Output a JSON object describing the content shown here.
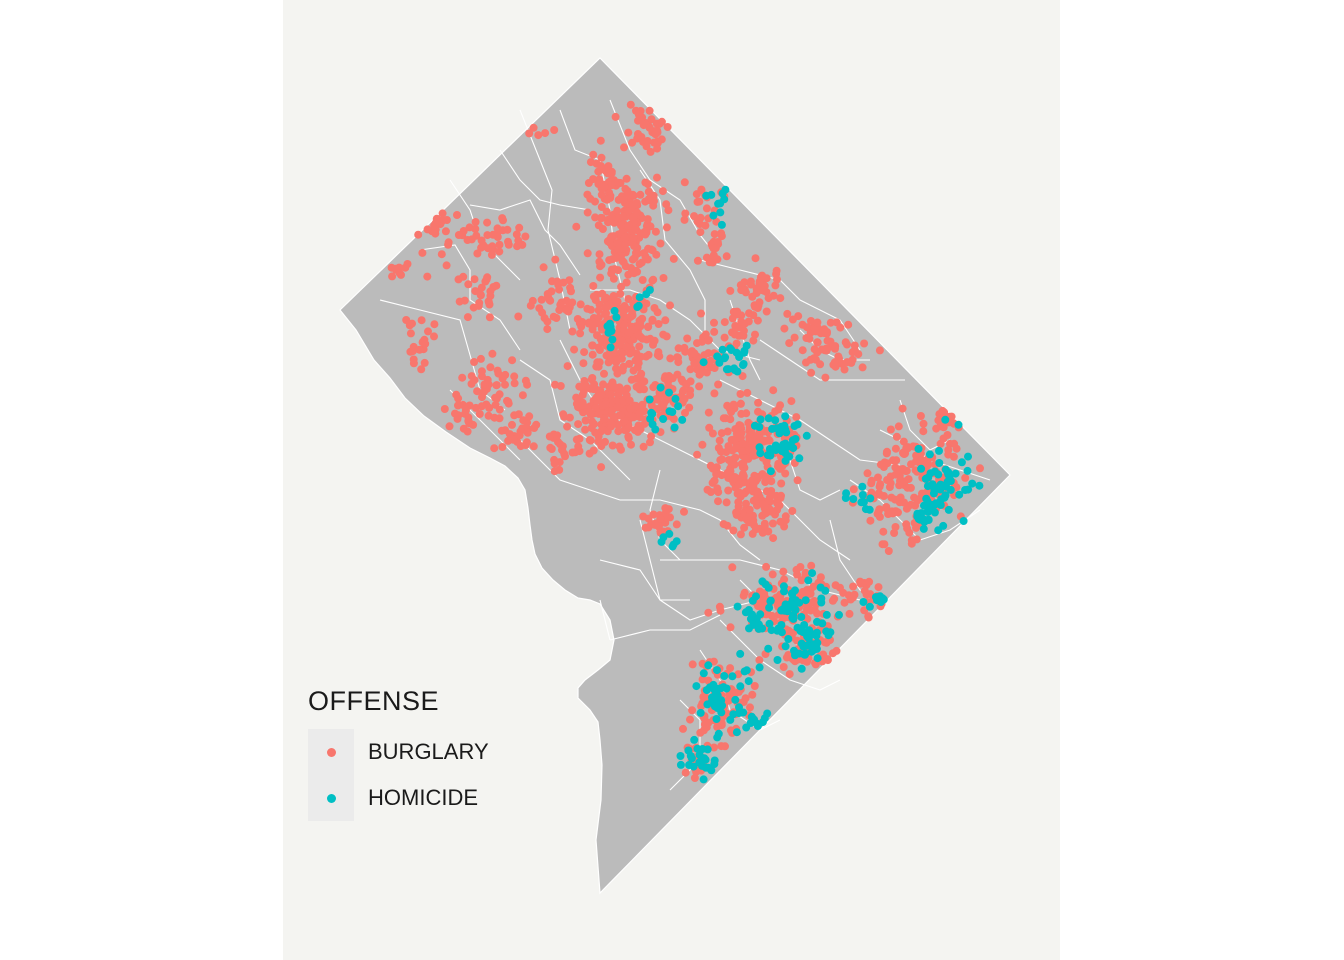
{
  "legend": {
    "title": "OFFENSE",
    "entries": [
      {
        "label": "BURGLARY",
        "color": "#f8766d"
      },
      {
        "label": "HOMICIDE",
        "color": "#00bfc4"
      }
    ]
  },
  "colors": {
    "land": "#bbbbbb",
    "boundary": "#ffffff",
    "panel_background": "#f4f4f1",
    "legend_key_background": "#ebebeb"
  }
}
